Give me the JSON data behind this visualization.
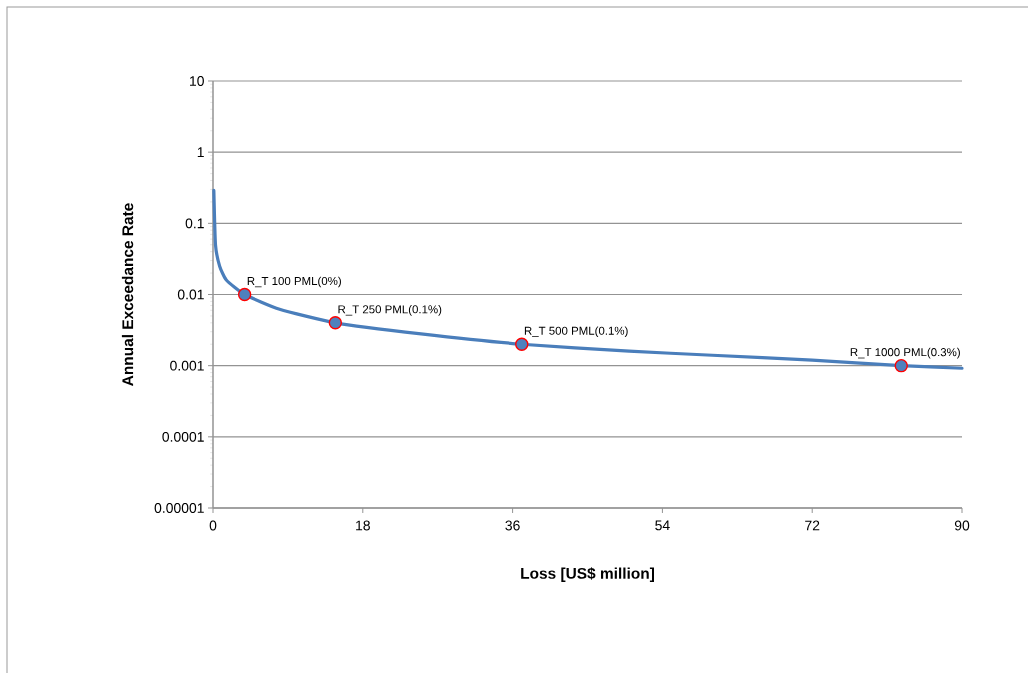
{
  "chart_data": {
    "type": "line",
    "xlabel": "Loss [US$ million]",
    "ylabel": "Annual Exceedance Rate",
    "xlim": [
      0,
      90
    ],
    "xticks": [
      0,
      18,
      36,
      54,
      72,
      90
    ],
    "ylim": [
      1e-05,
      10
    ],
    "yticks": [
      {
        "value": 1e-05,
        "label": "0.00001"
      },
      0.0001,
      0.001,
      0.01,
      0.1,
      1,
      10
    ],
    "log": "y",
    "grid": "y",
    "series": [
      {
        "color": "#4a7ebb",
        "marker": "none",
        "x": [
          0.1,
          0.3,
          0.8,
          1.6,
          3.8,
          8,
          14.7,
          25,
          37.1,
          50,
          60,
          72,
          82.7,
          90
        ],
        "values": [
          0.29,
          0.05,
          0.025,
          0.016,
          0.01,
          0.0062,
          0.004,
          0.0028,
          0.002,
          0.0016,
          0.0014,
          0.0012,
          0.001,
          0.00092
        ]
      },
      {
        "type": "scatter",
        "color": "#4f81bd",
        "marker": "circle",
        "x": [
          3.8,
          14.7,
          37.1,
          82.7
        ],
        "values": [
          0.01,
          0.004,
          0.002,
          0.001
        ]
      }
    ],
    "annotations": [
      {
        "text": "R_T 100 PML(0%)",
        "x": 3.8,
        "y": 0.01
      },
      {
        "text": "R_T 250 PML(0.1%)",
        "x": 14.7,
        "y": 0.004
      },
      {
        "text": "R_T 500 PML(0.1%)",
        "x": 37.1,
        "y": 0.002
      },
      {
        "text": "R_T 1000 PML(0.3%)",
        "x": 82.7,
        "y": 0.001
      }
    ]
  }
}
